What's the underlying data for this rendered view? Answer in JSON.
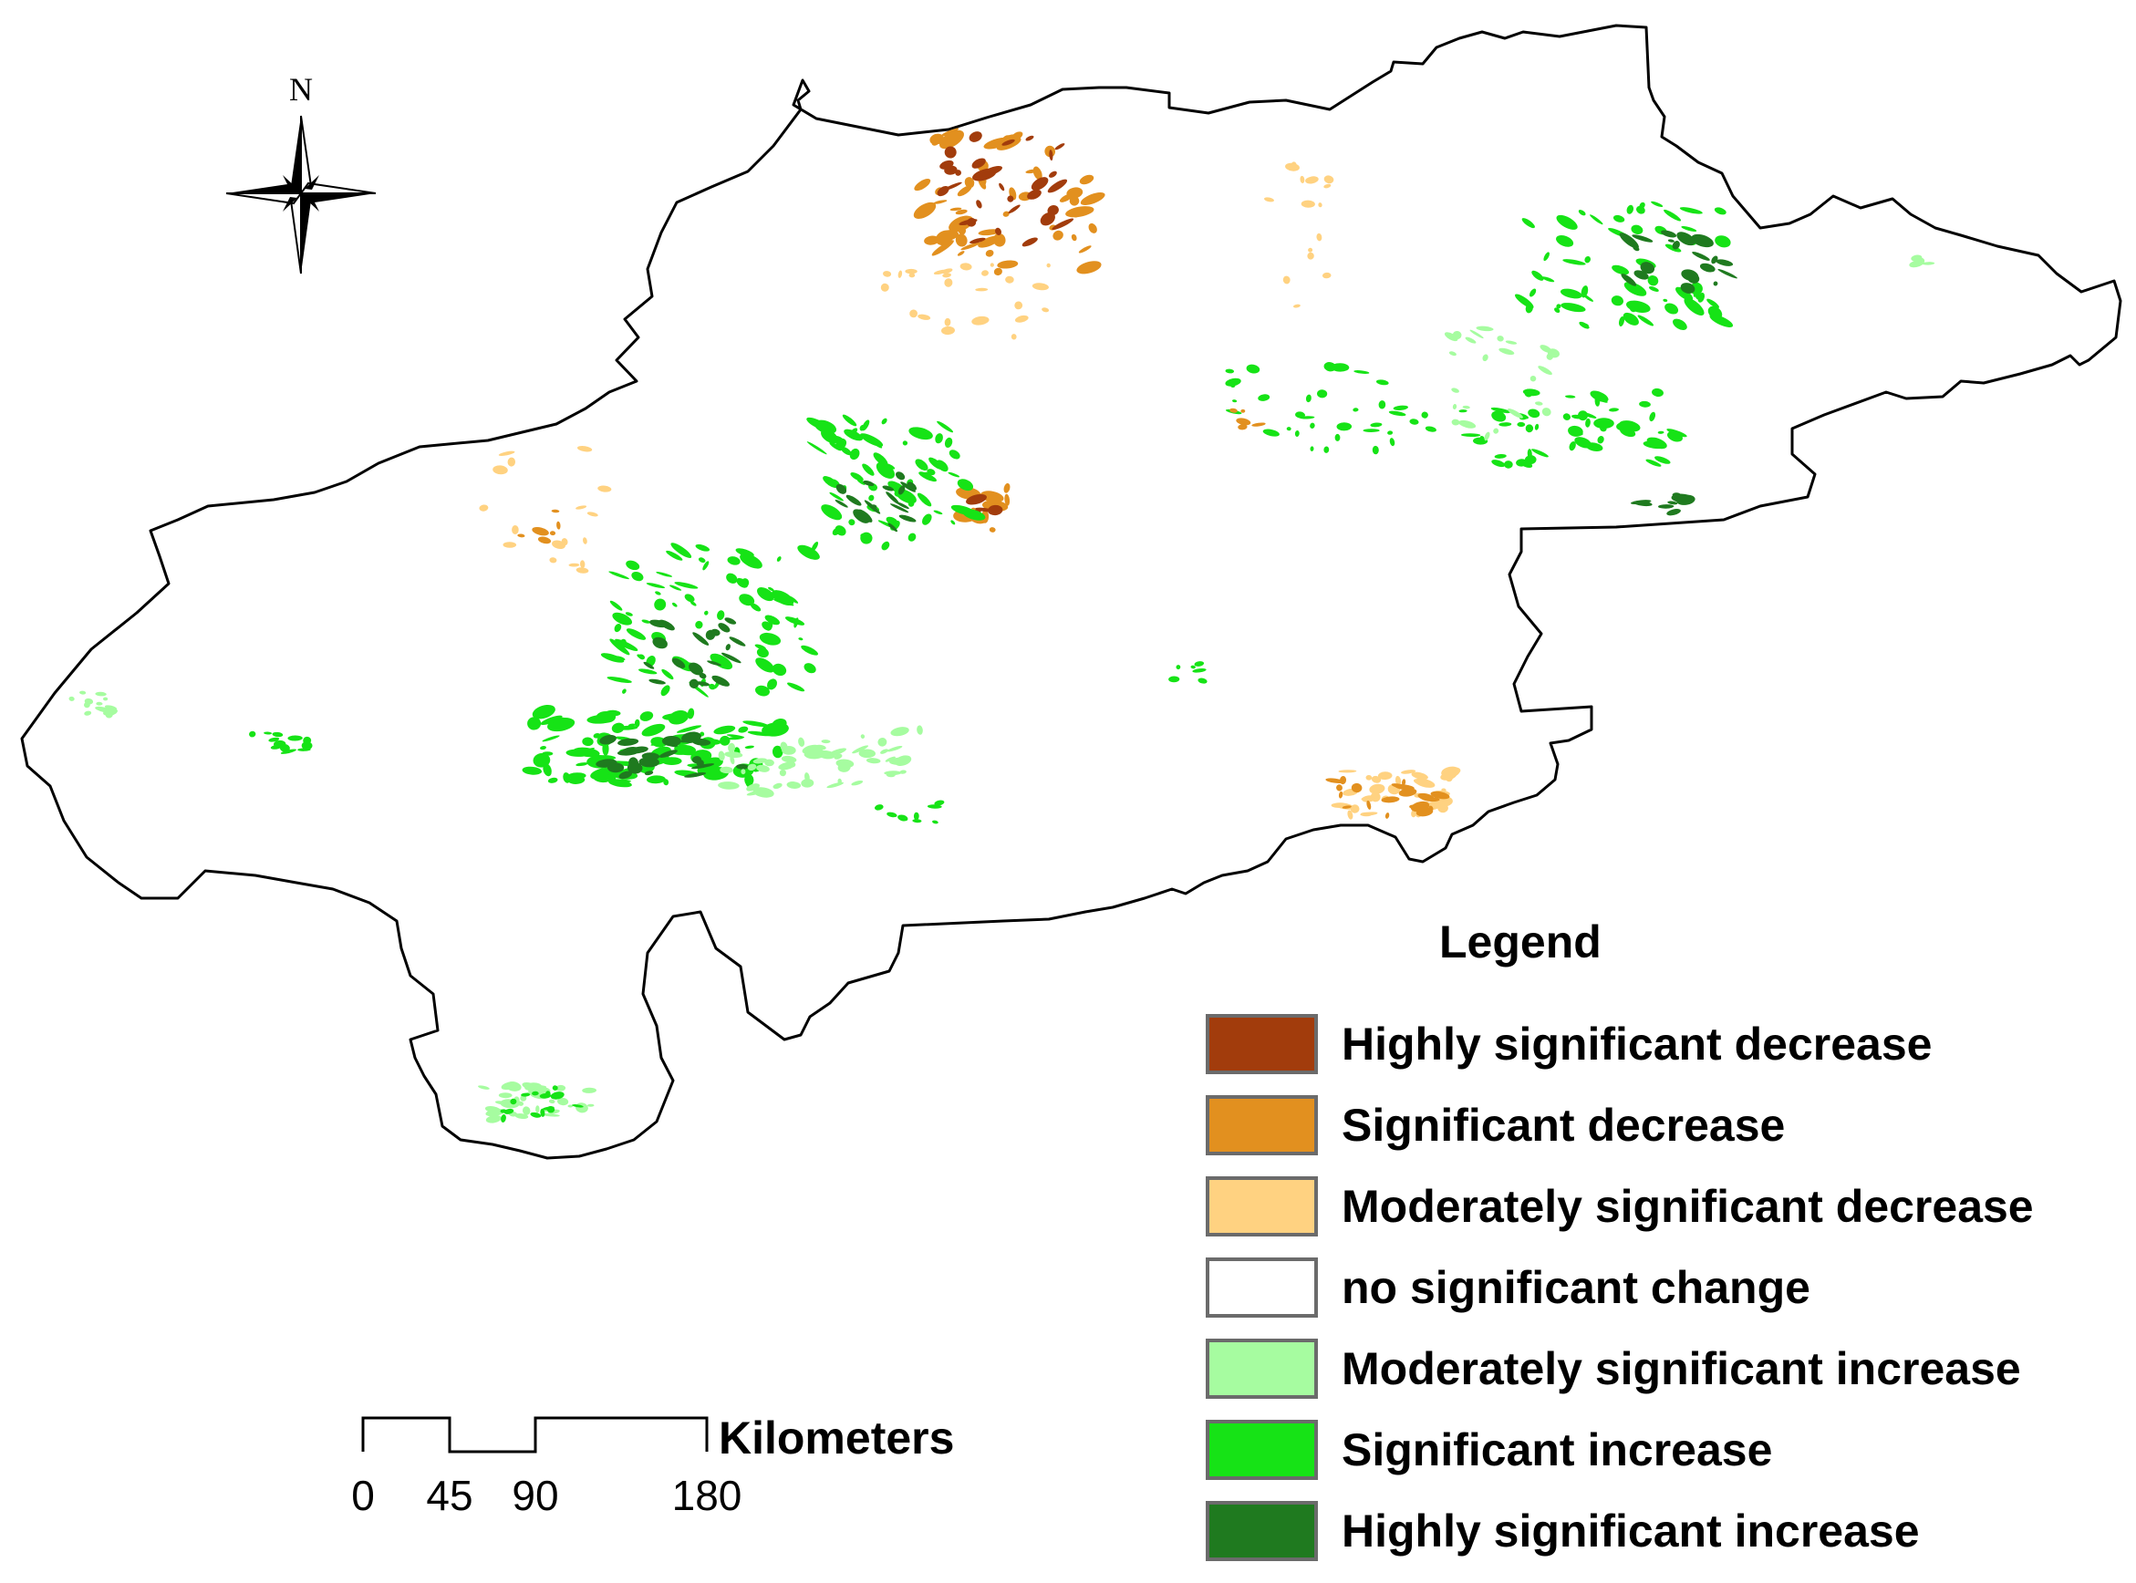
{
  "north_arrow": {
    "label": "N"
  },
  "scale_bar": {
    "unit_label": "Kilometers",
    "ticks": [
      "0",
      "45",
      "90",
      "180"
    ]
  },
  "legend": {
    "title": "Legend",
    "items": [
      {
        "label": "Highly significant decrease",
        "color": "#a23c0c"
      },
      {
        "label": "Significant decrease",
        "color": "#e2901f"
      },
      {
        "label": "Moderately significant decrease",
        "color": "#ffd281"
      },
      {
        "label": "no significant change",
        "color": "#ffffff"
      },
      {
        "label": "Moderately significant increase",
        "color": "#a6fca0"
      },
      {
        "label": "Significant increase",
        "color": "#16e316"
      },
      {
        "label": "Highly significant increase",
        "color": "#1f7a1f"
      }
    ]
  }
}
